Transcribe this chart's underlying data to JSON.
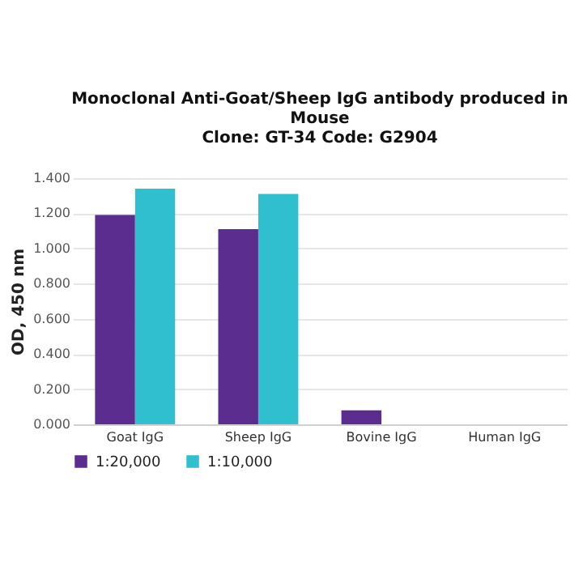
{
  "chart_data": {
    "type": "bar",
    "title": "Monoclonal Anti-Goat/Sheep IgG antibody produced in Mouse",
    "subtitle": "Clone: GT-34  Code: G2904",
    "ylabel": "OD, 450 nm",
    "categories": [
      "Goat IgG",
      "Sheep IgG",
      "Bovine IgG",
      "Human IgG"
    ],
    "series": [
      {
        "name": "1:20,000",
        "color": "#5b2d8e",
        "values": [
          1.19,
          1.11,
          0.08,
          0
        ]
      },
      {
        "name": "1:10,000",
        "color": "#2fbfcf",
        "values": [
          1.34,
          1.31,
          0,
          0
        ]
      }
    ],
    "ylim": [
      0,
      1.4
    ],
    "yticks": [
      {
        "value": 0,
        "label": "0.000"
      },
      {
        "value": 0.2,
        "label": "0.200"
      },
      {
        "value": 0.4,
        "label": "0.400"
      },
      {
        "value": 0.6,
        "label": "0.600"
      },
      {
        "value": 0.8,
        "label": "0.800"
      },
      {
        "value": 1,
        "label": "1.000"
      },
      {
        "value": 1.2,
        "label": "1.200"
      },
      {
        "value": 1.4,
        "label": "1.400"
      }
    ],
    "grid": "y",
    "legend": "bottom"
  }
}
